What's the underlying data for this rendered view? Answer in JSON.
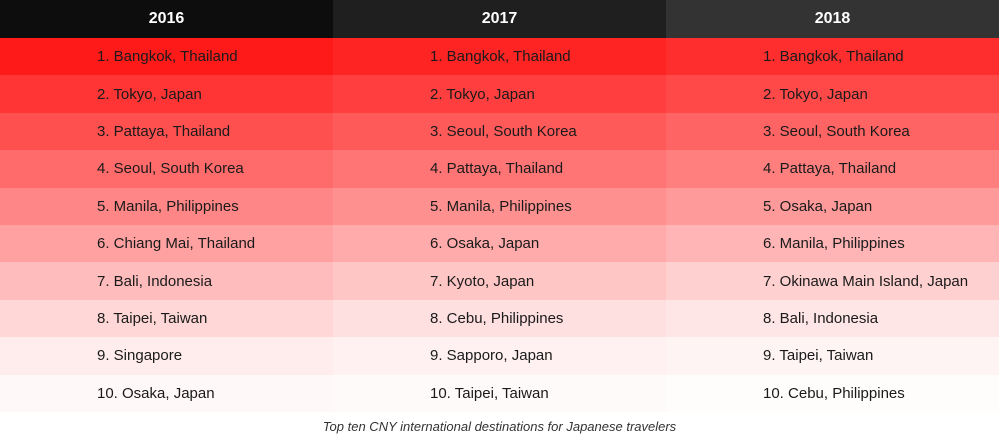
{
  "chart_data": {
    "type": "table",
    "columns": [
      "2016",
      "2017",
      "2018"
    ],
    "rows": [
      [
        "1. Bangkok, Thailand",
        "1. Bangkok, Thailand",
        "1. Bangkok, Thailand"
      ],
      [
        "2. Tokyo, Japan",
        "2. Tokyo, Japan",
        "2. Tokyo, Japan"
      ],
      [
        "3. Pattaya, Thailand",
        "3. Seoul, South Korea",
        "3. Seoul, South Korea"
      ],
      [
        "4. Seoul, South Korea",
        "4. Pattaya, Thailand",
        "4. Pattaya, Thailand"
      ],
      [
        "5. Manila, Philippines",
        "5. Manila, Philippines",
        "5. Osaka, Japan"
      ],
      [
        "6. Chiang Mai, Thailand",
        "6. Osaka, Japan",
        "6. Manila, Philippines"
      ],
      [
        "7. Bali, Indonesia",
        "7. Kyoto, Japan",
        "7. Okinawa Main Island, Japan"
      ],
      [
        "8. Taipei, Taiwan",
        "8. Cebu, Philippines",
        "8. Bali, Indonesia"
      ],
      [
        "9. Singapore",
        "9. Sapporo, Japan",
        "9. Taipei, Taiwan"
      ],
      [
        "10. Osaka, Japan",
        "10. Taipei, Taiwan",
        "10. Cebu, Philippines"
      ]
    ],
    "caption": "Top ten CNY international destinations for Japanese travelers"
  },
  "colors": {
    "header_backgrounds": [
      "#0d0d0d",
      "#1f1f1f",
      "#333333"
    ],
    "row_backgrounds": [
      "#ff1a1a",
      "#ff3535",
      "#ff5050",
      "#ff6b6b",
      "#ff8686",
      "#ffa1a1",
      "#ffbcbc",
      "#ffd7d7",
      "#ffeded",
      "#fff8f8"
    ],
    "row_backgrounds_shift": [
      [
        "#ff1a1a",
        "#ff2424",
        "#ff2e2e"
      ],
      [
        "#ff3535",
        "#ff3f3f",
        "#ff4949"
      ],
      [
        "#ff5050",
        "#ff5a5a",
        "#ff6464"
      ],
      [
        "#ff6b6b",
        "#ff7575",
        "#ff7f7f"
      ],
      [
        "#ff8686",
        "#ff9090",
        "#ff9a9a"
      ],
      [
        "#ffa1a1",
        "#ffabab",
        "#ffb5b5"
      ],
      [
        "#ffbcbc",
        "#ffc6c6",
        "#ffd0d0"
      ],
      [
        "#ffd7d7",
        "#ffe0e0",
        "#ffe6e6"
      ],
      [
        "#ffeded",
        "#fff1f1",
        "#fff4f4"
      ],
      [
        "#fff8f8",
        "#fffafa",
        "#fffcfc"
      ]
    ]
  }
}
